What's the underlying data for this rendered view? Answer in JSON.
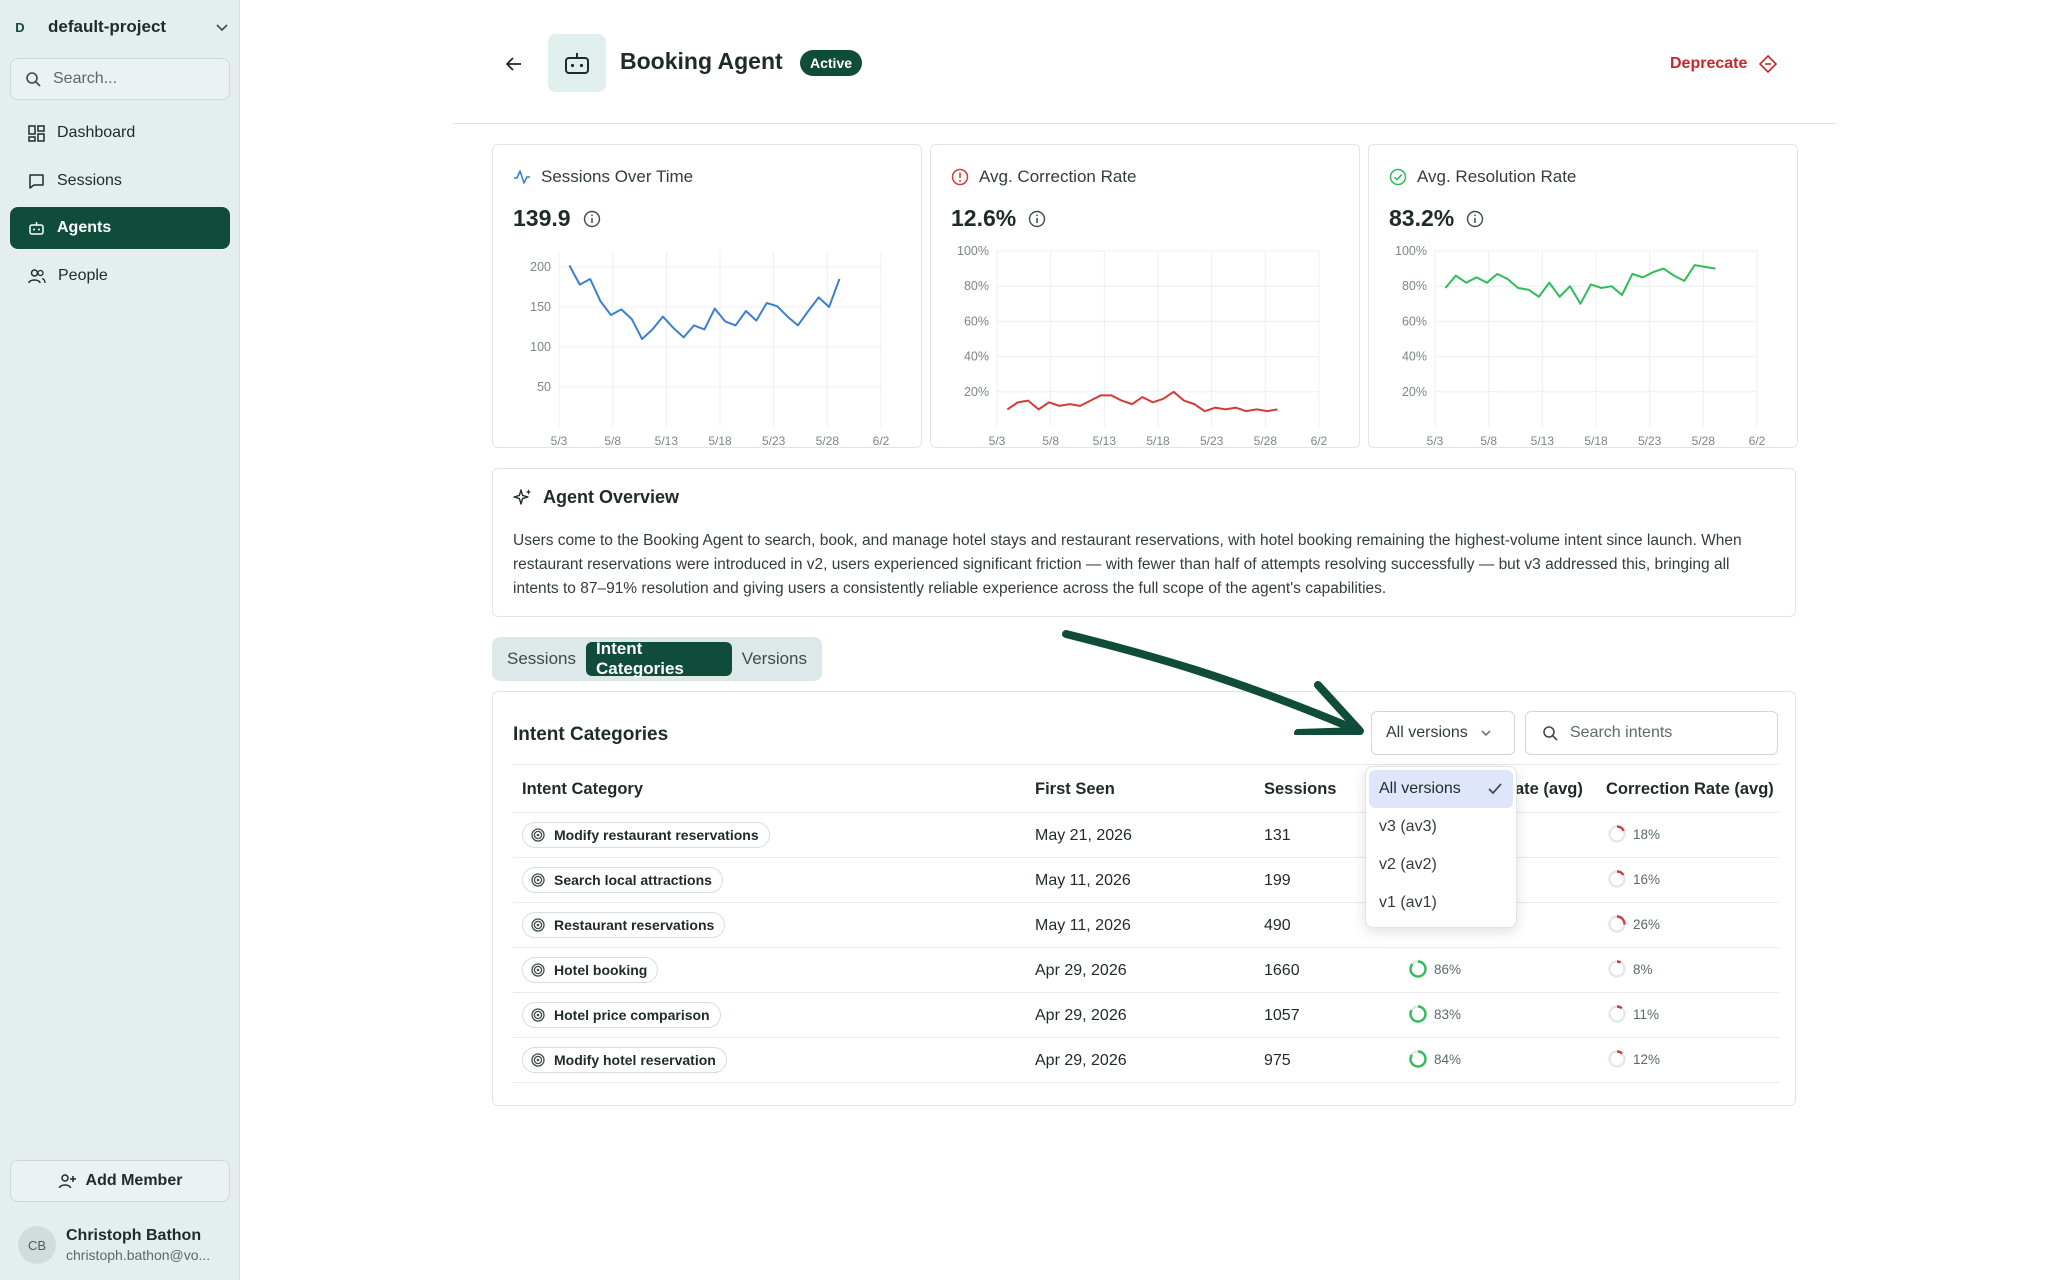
{
  "sidebar": {
    "project_initial": "D",
    "project_name": "default-project",
    "search_placeholder": "Search...",
    "nav": [
      {
        "label": "Dashboard",
        "icon": "grid-icon"
      },
      {
        "label": "Sessions",
        "icon": "chat-icon"
      },
      {
        "label": "Agents",
        "icon": "robot-icon",
        "active": true
      },
      {
        "label": "People",
        "icon": "people-icon"
      }
    ],
    "add_member_label": "Add Member",
    "user": {
      "initials": "CB",
      "name": "Christoph Bathon",
      "email": "christoph.bathon@vo..."
    }
  },
  "header": {
    "title": "Booking Agent",
    "status": "Active",
    "deprecate_label": "Deprecate"
  },
  "metrics": [
    {
      "label": "Sessions Over Time",
      "value": "139.9",
      "color": "#3b7fd4",
      "chart_data": {
        "type": "line",
        "x_ticks": [
          "5/3",
          "5/8",
          "5/13",
          "5/18",
          "5/23",
          "5/28",
          "6/2"
        ],
        "y_ticks": [
          "200",
          "150",
          "100",
          "50"
        ],
        "y_tick_values": [
          200,
          150,
          100,
          50
        ],
        "ylim": [
          0,
          220
        ],
        "x": [
          1,
          2,
          3,
          4,
          5,
          6,
          7,
          8,
          9,
          10,
          11,
          12,
          13,
          14,
          15,
          16,
          17,
          18,
          19,
          20,
          21,
          22,
          23,
          24,
          25,
          26,
          27
        ],
        "values": [
          202,
          178,
          185,
          157,
          140,
          147,
          135,
          110,
          122,
          138,
          124,
          112,
          127,
          122,
          148,
          132,
          127,
          145,
          133,
          155,
          151,
          138,
          127,
          145,
          162,
          150,
          185
        ],
        "xlim": [
          0,
          31
        ]
      }
    },
    {
      "label": "Avg. Correction Rate",
      "value": "12.6%",
      "color": "#d43b3b",
      "chart_data": {
        "type": "line",
        "x_ticks": [
          "5/3",
          "5/8",
          "5/13",
          "5/18",
          "5/23",
          "5/28",
          "6/2"
        ],
        "y_ticks": [
          "100%",
          "80%",
          "60%",
          "40%",
          "20%"
        ],
        "y_tick_values": [
          100,
          80,
          60,
          40,
          20
        ],
        "ylim": [
          0,
          100
        ],
        "x": [
          1,
          2,
          3,
          4,
          5,
          6,
          7,
          8,
          9,
          10,
          11,
          12,
          13,
          14,
          15,
          16,
          17,
          18,
          19,
          20,
          21,
          22,
          23,
          24,
          25,
          26,
          27
        ],
        "values": [
          10,
          14,
          15,
          10,
          14,
          12,
          13,
          12,
          15,
          18,
          18,
          15,
          13,
          17,
          14,
          16,
          20,
          15,
          13,
          9,
          11,
          10,
          11,
          9,
          10,
          9,
          10
        ],
        "xlim": [
          0,
          31
        ]
      }
    },
    {
      "label": "Avg. Resolution Rate",
      "value": "83.2%",
      "color": "#2ebd59",
      "chart_data": {
        "type": "line",
        "x_ticks": [
          "5/3",
          "5/8",
          "5/13",
          "5/18",
          "5/23",
          "5/28",
          "6/2"
        ],
        "y_ticks": [
          "100%",
          "80%",
          "60%",
          "40%",
          "20%"
        ],
        "y_tick_values": [
          100,
          80,
          60,
          40,
          20
        ],
        "ylim": [
          0,
          100
        ],
        "x": [
          1,
          2,
          3,
          4,
          5,
          6,
          7,
          8,
          9,
          10,
          11,
          12,
          13,
          14,
          15,
          16,
          17,
          18,
          19,
          20,
          21,
          22,
          23,
          24,
          25,
          26,
          27
        ],
        "values": [
          79,
          86,
          82,
          85,
          82,
          87,
          84,
          79,
          78,
          74,
          82,
          74,
          80,
          70,
          81,
          79,
          80,
          75,
          87,
          85,
          88,
          90,
          86,
          83,
          92,
          91,
          90
        ],
        "xlim": [
          0,
          31
        ]
      }
    }
  ],
  "overview": {
    "title": "Agent Overview",
    "text": "Users come to the Booking Agent to search, book, and manage hotel stays and restaurant reservations, with hotel booking remaining the highest-volume intent since launch. When restaurant reservations were introduced in v2, users experienced significant friction — with fewer than half of attempts resolving successfully — but v3 addressed this, bringing all intents to 87–91% resolution and giving users a consistently reliable experience across the full scope of the agent's capabilities."
  },
  "tabs": [
    {
      "label": "Sessions"
    },
    {
      "label": "Intent Categories",
      "active": true
    },
    {
      "label": "Versions"
    }
  ],
  "intents": {
    "title": "Intent Categories",
    "version_select": "All versions",
    "search_placeholder": "Search intents",
    "columns": {
      "intent": "Intent Category",
      "first_seen": "First Seen",
      "sessions": "Sessions",
      "resolution": "Resolution Rate (avg)",
      "resolution_visible": "ate (avg)",
      "correction": "Correction Rate (avg)"
    },
    "rows": [
      {
        "intent": "Modify restaurant reservations",
        "first_seen": "May 21, 2026",
        "sessions": "131",
        "resolution": 0,
        "resolution_label": "",
        "correction": 18,
        "correction_label": "18%"
      },
      {
        "intent": "Search local attractions",
        "first_seen": "May 11, 2026",
        "sessions": "199",
        "resolution": 0,
        "resolution_label": "",
        "correction": 16,
        "correction_label": "16%"
      },
      {
        "intent": "Restaurant reservations",
        "first_seen": "May 11, 2026",
        "sessions": "490",
        "resolution": 0,
        "resolution_label": "",
        "correction": 26,
        "correction_label": "26%"
      },
      {
        "intent": "Hotel booking",
        "first_seen": "Apr 29, 2026",
        "sessions": "1660",
        "resolution": 86,
        "resolution_label": "86%",
        "correction": 8,
        "correction_label": "8%"
      },
      {
        "intent": "Hotel price comparison",
        "first_seen": "Apr 29, 2026",
        "sessions": "1057",
        "resolution": 83,
        "resolution_label": "83%",
        "correction": 11,
        "correction_label": "11%"
      },
      {
        "intent": "Modify hotel reservation",
        "first_seen": "Apr 29, 2026",
        "sessions": "975",
        "resolution": 84,
        "resolution_label": "84%",
        "correction": 12,
        "correction_label": "12%"
      }
    ]
  },
  "version_dropdown": {
    "options": [
      {
        "label": "All versions",
        "selected": true
      },
      {
        "label": "v3 (av3)"
      },
      {
        "label": "v2 (av2)"
      },
      {
        "label": "v1 (av1)"
      }
    ]
  },
  "colors": {
    "brand": "#0f4c3a",
    "danger": "#c62828",
    "resolution": "#2ebd59",
    "correction": "#d43b3b",
    "annotation_arrow": "#0f4c3a"
  }
}
